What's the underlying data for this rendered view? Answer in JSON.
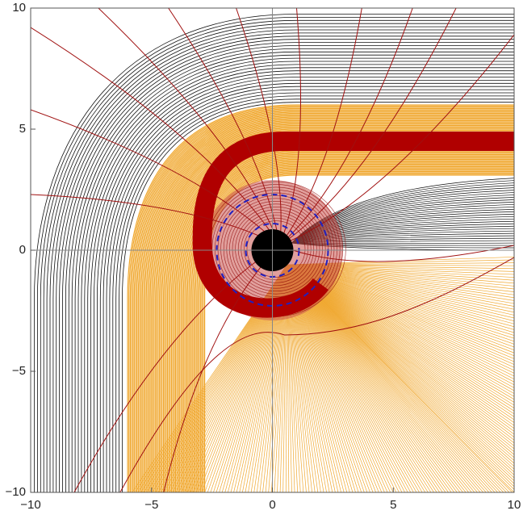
{
  "chart_data": {
    "type": "plot",
    "xlim": [
      -10,
      10
    ],
    "ylim": [
      -10,
      10
    ],
    "xticks": [
      {
        "value": -10,
        "label": "−10"
      },
      {
        "value": -5,
        "label": "−5"
      },
      0,
      5,
      10
    ],
    "yticks": [
      {
        "value": -10,
        "label": "−10"
      },
      {
        "value": -5,
        "label": "−5"
      },
      0,
      5,
      10
    ]
  }
}
